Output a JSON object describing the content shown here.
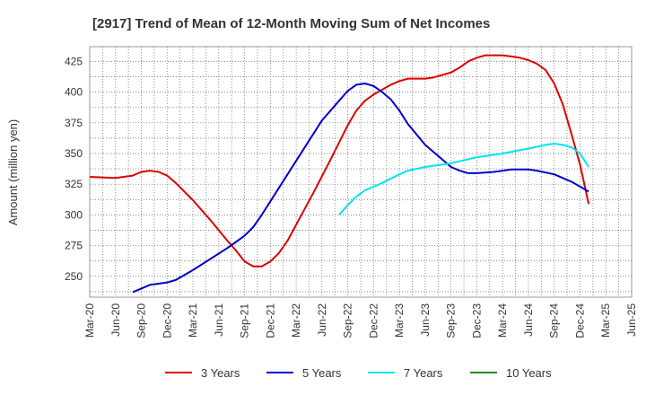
{
  "chart_data": {
    "type": "line",
    "title": "[2917]  Trend of Mean of 12-Month Moving Sum of Net Incomes",
    "ylabel": "Amount (million yen)",
    "xlabel": "",
    "x_ticks": [
      "Mar-20",
      "Jun-20",
      "Sep-20",
      "Dec-20",
      "Mar-21",
      "Jun-21",
      "Sep-21",
      "Dec-21",
      "Mar-22",
      "Jun-22",
      "Sep-22",
      "Dec-22",
      "Mar-23",
      "Jun-23",
      "Sep-23",
      "Dec-23",
      "Mar-24",
      "Jun-24",
      "Sep-24",
      "Dec-24",
      "Mar-25",
      "Jun-25"
    ],
    "y_ticks": [
      250,
      275,
      300,
      325,
      350,
      375,
      400,
      425
    ],
    "ylim": [
      233,
      437
    ],
    "grid": true,
    "legend_position": "bottom",
    "series": [
      {
        "name": "3 Years",
        "color": "#dd0000",
        "points": [
          [
            "Mar-20",
            331
          ],
          [
            "Jun-20",
            330
          ],
          [
            "Aug-20",
            332
          ],
          [
            "Sep-20",
            335
          ],
          [
            "Oct-20",
            336
          ],
          [
            "Nov-20",
            335
          ],
          [
            "Dec-20",
            332
          ],
          [
            "Jan-21",
            326
          ],
          [
            "Mar-21",
            312
          ],
          [
            "May-21",
            296
          ],
          [
            "Jul-21",
            279
          ],
          [
            "Aug-21",
            271
          ],
          [
            "Sep-21",
            262
          ],
          [
            "Oct-21",
            258
          ],
          [
            "Nov-21",
            258
          ],
          [
            "Dec-21",
            262
          ],
          [
            "Jan-22",
            269
          ],
          [
            "Feb-22",
            279
          ],
          [
            "Mar-22",
            292
          ],
          [
            "May-22",
            318
          ],
          [
            "Jul-22",
            345
          ],
          [
            "Sep-22",
            373
          ],
          [
            "Oct-22",
            385
          ],
          [
            "Nov-22",
            393
          ],
          [
            "Dec-22",
            398
          ],
          [
            "Jan-23",
            402
          ],
          [
            "Feb-23",
            406
          ],
          [
            "Mar-23",
            409
          ],
          [
            "Apr-23",
            411
          ],
          [
            "May-23",
            411
          ],
          [
            "Jun-23",
            411
          ],
          [
            "Jul-23",
            412
          ],
          [
            "Aug-23",
            414
          ],
          [
            "Sep-23",
            416
          ],
          [
            "Oct-23",
            420
          ],
          [
            "Nov-23",
            425
          ],
          [
            "Dec-23",
            428
          ],
          [
            "Jan-24",
            430
          ],
          [
            "Feb-24",
            430
          ],
          [
            "Mar-24",
            430
          ],
          [
            "Apr-24",
            429
          ],
          [
            "May-24",
            428
          ],
          [
            "Jun-24",
            426
          ],
          [
            "Jul-24",
            423
          ],
          [
            "Aug-24",
            418
          ],
          [
            "Sep-24",
            407
          ],
          [
            "Oct-24",
            390
          ],
          [
            "Nov-24",
            366
          ],
          [
            "Dec-24",
            341
          ],
          [
            "Jan-25",
            309
          ]
        ]
      },
      {
        "name": "5 Years",
        "color": "#0000cc",
        "points": [
          [
            "Aug-20",
            237
          ],
          [
            "Sep-20",
            240
          ],
          [
            "Oct-20",
            243
          ],
          [
            "Nov-20",
            244
          ],
          [
            "Dec-20",
            245
          ],
          [
            "Jan-21",
            247
          ],
          [
            "Feb-21",
            251
          ],
          [
            "Mar-21",
            255
          ],
          [
            "May-21",
            264
          ],
          [
            "Jul-21",
            273
          ],
          [
            "Aug-21",
            278
          ],
          [
            "Sep-21",
            283
          ],
          [
            "Oct-21",
            290
          ],
          [
            "Nov-21",
            300
          ],
          [
            "Dec-21",
            311
          ],
          [
            "Feb-22",
            333
          ],
          [
            "Apr-22",
            355
          ],
          [
            "Jun-22",
            377
          ],
          [
            "Aug-22",
            393
          ],
          [
            "Sep-22",
            401
          ],
          [
            "Oct-22",
            406
          ],
          [
            "Nov-22",
            407
          ],
          [
            "Dec-22",
            405
          ],
          [
            "Jan-23",
            400
          ],
          [
            "Feb-23",
            394
          ],
          [
            "Mar-23",
            385
          ],
          [
            "Apr-23",
            374
          ],
          [
            "Jun-23",
            357
          ],
          [
            "Aug-23",
            345
          ],
          [
            "Sep-23",
            339
          ],
          [
            "Oct-23",
            336
          ],
          [
            "Nov-23",
            334
          ],
          [
            "Dec-23",
            334
          ],
          [
            "Feb-24",
            335
          ],
          [
            "Apr-24",
            337
          ],
          [
            "Jun-24",
            337
          ],
          [
            "Jul-24",
            336
          ],
          [
            "Sep-24",
            333
          ],
          [
            "Oct-24",
            330
          ],
          [
            "Nov-24",
            327
          ],
          [
            "Dec-24",
            323
          ],
          [
            "Jan-25",
            319
          ]
        ]
      },
      {
        "name": "7 Years",
        "color": "#00e5ee",
        "points": [
          [
            "Aug-22",
            300
          ],
          [
            "Sep-22",
            308
          ],
          [
            "Oct-22",
            315
          ],
          [
            "Nov-22",
            320
          ],
          [
            "Dec-22",
            323
          ],
          [
            "Jan-23",
            326
          ],
          [
            "Mar-23",
            333
          ],
          [
            "Apr-23",
            336
          ],
          [
            "Jun-23",
            339
          ],
          [
            "Sep-23",
            342
          ],
          [
            "Dec-23",
            347
          ],
          [
            "Mar-24",
            350
          ],
          [
            "Jun-24",
            354
          ],
          [
            "Aug-24",
            357
          ],
          [
            "Sep-24",
            358
          ],
          [
            "Oct-24",
            357
          ],
          [
            "Nov-24",
            355
          ],
          [
            "Dec-24",
            350
          ],
          [
            "Jan-25",
            339
          ]
        ]
      },
      {
        "name": "10 Years",
        "color": "#228b22",
        "points": []
      }
    ]
  }
}
